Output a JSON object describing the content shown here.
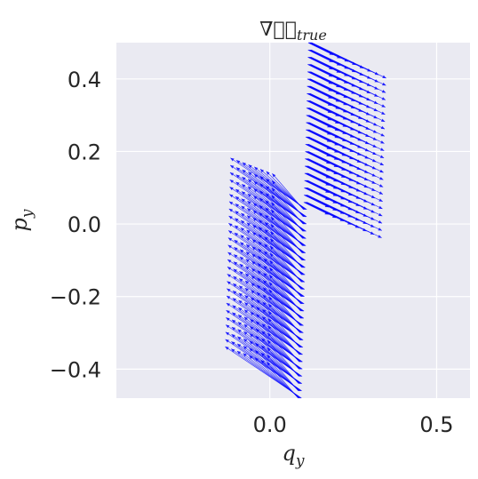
{
  "chart_data": {
    "type": "quiver",
    "title_parts": {
      "nabla": "∇⃗",
      "symbol": "ℋ",
      "sub": "true"
    },
    "xlabel_parts": {
      "main": "q",
      "sub": "y"
    },
    "ylabel_parts": {
      "main": "p",
      "sub": "y"
    },
    "xlim": [
      -0.46,
      0.6
    ],
    "ylim": [
      -0.48,
      0.5
    ],
    "xticks": [
      {
        "value": 0.0,
        "label": "0.0"
      },
      {
        "value": 0.5,
        "label": "0.5"
      }
    ],
    "yticks": [
      {
        "value": -0.4,
        "label": "−0.4"
      },
      {
        "value": -0.2,
        "label": "−0.2"
      },
      {
        "value": 0.0,
        "label": "0.0"
      },
      {
        "value": 0.2,
        "label": "0.2"
      },
      {
        "value": 0.4,
        "label": "0.4"
      }
    ],
    "grid": true,
    "background": "#eaeaf2",
    "arrow_color": "#0000ff",
    "field": {
      "center_line": {
        "q_at_p_min": 0.09,
        "q_at_p_max": 0.12
      },
      "p_start": -0.48,
      "p_end": 0.5,
      "p_step": 0.02,
      "arrows_per_row": 8,
      "q_half_width": 0.005
    }
  }
}
